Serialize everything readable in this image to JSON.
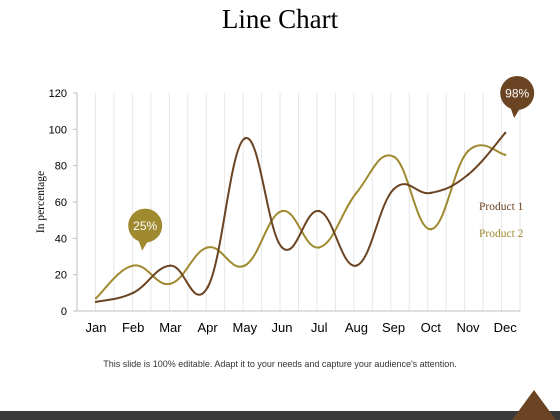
{
  "slide": {
    "title": "Line Chart",
    "footnote": "This slide is 100% editable. Adapt it to your needs and capture your audience's attention."
  },
  "chart_data": {
    "type": "line",
    "title": "",
    "xlabel": "",
    "ylabel": "In percentage",
    "categories": [
      "Jan",
      "Feb",
      "Mar",
      "Apr",
      "May",
      "Jun",
      "Jul",
      "Aug",
      "Sep",
      "Oct",
      "Nov",
      "Dec"
    ],
    "yticks": [
      0,
      20,
      40,
      60,
      80,
      100,
      120
    ],
    "ylim": [
      0,
      120
    ],
    "grid": "vertical",
    "legend_position": "right",
    "series": [
      {
        "name": "Product 1",
        "color": "#6b4423",
        "values": [
          5,
          10,
          25,
          13,
          95,
          35,
          55,
          25,
          67,
          65,
          75,
          98
        ]
      },
      {
        "name": "Product 2",
        "color": "#a08a30",
        "values": [
          7,
          25,
          15,
          35,
          25,
          55,
          35,
          65,
          85,
          45,
          88,
          86
        ]
      }
    ],
    "annotations": [
      {
        "text": "25%",
        "series": "Product 2",
        "category": "Feb",
        "color": "#a08a30"
      },
      {
        "text": "98%",
        "series": "Product 1",
        "category": "Dec",
        "color": "#6b4423"
      }
    ]
  }
}
